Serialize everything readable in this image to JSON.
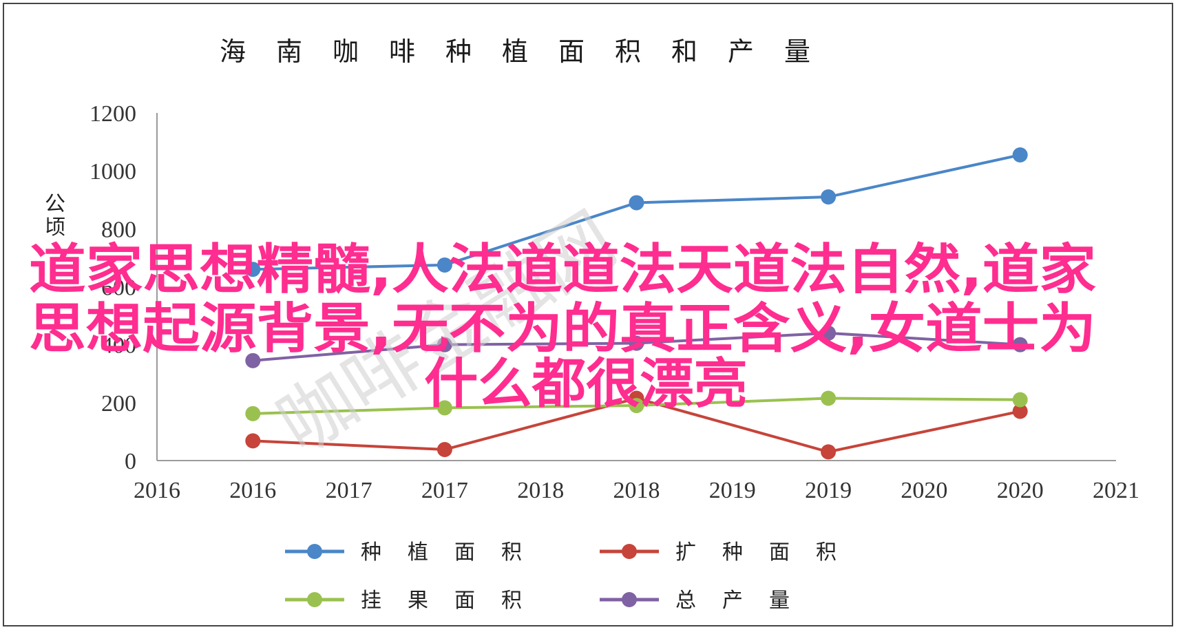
{
  "chart_data": {
    "type": "line",
    "title": "海南咖啡种植面积和产量",
    "ylabel": "公顷",
    "xlabel": "",
    "x_ticks": [
      "2016",
      "2016",
      "2017",
      "2017",
      "2018",
      "2018",
      "2019",
      "2019",
      "2020",
      "2020",
      "2021"
    ],
    "y_ticks": [
      "0",
      "200",
      "400",
      "600",
      "800",
      "1000",
      "1200"
    ],
    "ylim": [
      0,
      1200
    ],
    "grid": false,
    "legend_position": "bottom",
    "categories": [
      "2016",
      "2017",
      "2018",
      "2019",
      "2020"
    ],
    "series": [
      {
        "name": "种植面积",
        "color": "#4a86c8",
        "values": [
          660,
          675,
          890,
          910,
          1055
        ]
      },
      {
        "name": "扩种面积",
        "color": "#c6443a",
        "values": [
          68,
          38,
          215,
          30,
          170
        ]
      },
      {
        "name": "挂果面积",
        "color": "#9ac14f",
        "values": [
          162,
          182,
          190,
          215,
          210
        ]
      },
      {
        "name": "总产量",
        "color": "#7f62a3",
        "values": [
          345,
          400,
          405,
          440,
          400
        ]
      }
    ]
  },
  "overlay": {
    "line1": "道家思想精髓,人法道道法天道法自然,道家",
    "line2": "思想起源背景,无不为的真正含义,女道士为",
    "line3": "什么都很漂亮",
    "color": "#ff2d8f"
  },
  "watermark": {
    "text": "咖啡金融网"
  }
}
